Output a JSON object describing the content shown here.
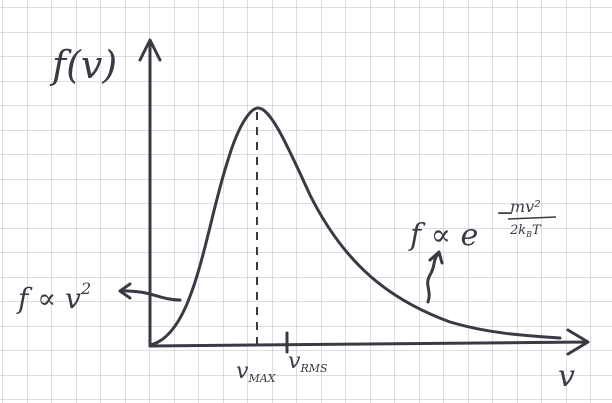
{
  "axes": {
    "y_label": "f(v)",
    "x_label": "v"
  },
  "markers": [
    {
      "base": "v",
      "subscript": "MAX"
    },
    {
      "base": "v",
      "subscript": "RMS"
    }
  ],
  "annotations": [
    {
      "text": "f ∝ v",
      "superscript": "2"
    },
    {
      "text": "f ∝ e",
      "sign": "−",
      "numerator": "mv²",
      "denominator": "2k",
      "denominator_sub": "B",
      "denominator_tail": "T"
    }
  ]
}
